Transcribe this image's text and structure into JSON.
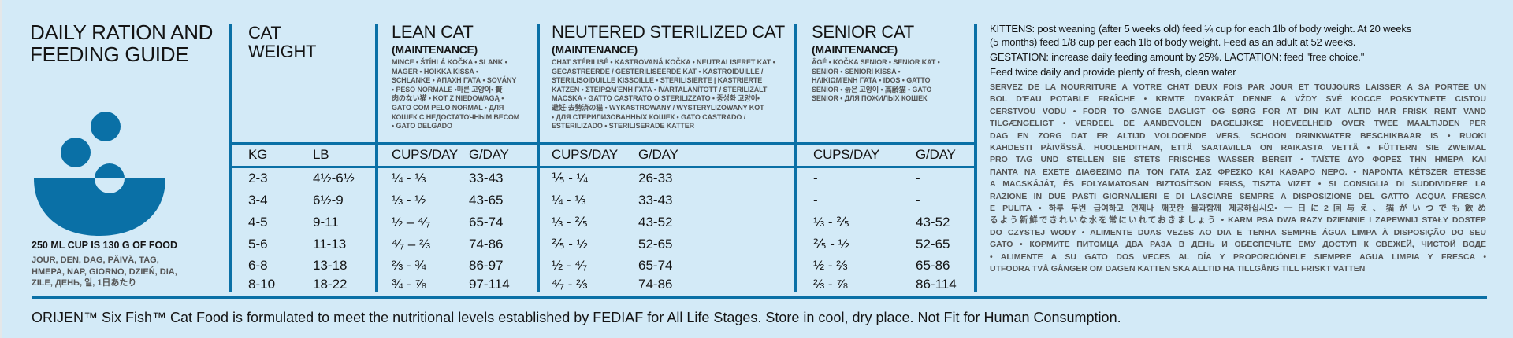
{
  "colors": {
    "accent": "#0a70a6",
    "background": "#d3eaf7"
  },
  "left": {
    "title_lines": [
      "DAILY RATION AND",
      "FEEDING GUIDE"
    ],
    "icon": "food-bowl-icon",
    "cup_note": "250 ML CUP IS 130 G OF FOOD",
    "per_day_lines": [
      "JOUR, DEN, DAG, PÄIVÄ, TAG,",
      "HMEPA, NAP, GIORNO, DZIEŃ, DIA,",
      "ZILE, ДЕНЬ, 일, 1日あたり"
    ]
  },
  "weight": {
    "title_lines": [
      "CAT",
      "WEIGHT"
    ],
    "kg_label": "KG",
    "lb_label": "LB"
  },
  "lean": {
    "title": "LEAN CAT",
    "subtitle": "(MAINTENANCE)",
    "translations": [
      "MINCE • ŠTÍHLÁ KOČKA • SLANK •",
      "MAGER • HOIKKA KISSA •",
      "SCHLANKE • ΆΠΑΧΗ ΓΆΤΑ • SOVÁNY",
      "• PESO NORMALE •마른 고양이• 贅",
      "肉のない猫 • KOT Z NIEDOWAGĄ •",
      "GATO COM PELO NORMAL • ДЛЯ",
      "КОШЕК С НЕДОСТАТОЧНЫМ ВЕСОМ",
      "• GATO DELGADO"
    ],
    "cups_label": "CUPS/DAY",
    "g_label": "G/DAY"
  },
  "neutered": {
    "title": "NEUTERED STERILIZED CAT",
    "subtitle": "(MAINTENANCE)",
    "translations": [
      "CHAT STÉRILISÉ • KASTROVANÁ KOČKA • NEUTRALISERET KAT •",
      "GECASTREERDE / GESTERILISEERDE KAT • KASTROIDUILLE /",
      "STERILISOIDUILLE KISSOILLE • STERILISIERTE | KASTRIERTE",
      "KATZEN • ΣΤΕΙΡΩΜΈΝΗ ΓΆΤΑ • IVARTALANÍTOTT / STERILIZÁLT",
      "MACSKA • GATTO CASTRATO O STERILIZZATO • 중성화 고양이•",
      "避妊·去勢済の猫 • WYKASTROWANY / WYSTERYLIZOWANY KOT",
      "• ДЛЯ СТЕРИЛИЗОВАННЫХ КОШЕК • GATO CASTRADO /",
      "ESTERILIZADO • STERILISERADE KATTER"
    ],
    "cups_label": "CUPS/DAY",
    "g_label": "G/DAY"
  },
  "senior": {
    "title": "SENIOR CAT",
    "subtitle": "(MAINTENANCE)",
    "translations": [
      "ÂGÉ • KOČKA SENIOR • SENIOR KAT •",
      "SENIOR • SENIORI KISSA •",
      "ΗΛΙΚΙΩΜΈΝΗ ΓΆΤΑ • IDOS • GATTO",
      "SENIOR • 늙은 고양이 • 高齢猫 • GATO",
      "SENIOR • ДЛЯ ПОЖИЛЫХ КОШЕК"
    ],
    "cups_label": "CUPS/DAY",
    "g_label": "G/DAY"
  },
  "rows": [
    {
      "kg": "2-3",
      "lb": "4½-6½",
      "lean_cups": "¼ - ⅓",
      "lean_g": "33-43",
      "neut_cups": "⅕ - ¼",
      "neut_g": "26-33",
      "senior_cups": "-",
      "senior_g": "-"
    },
    {
      "kg": "3-4",
      "lb": "6½-9",
      "lean_cups": "⅓ - ½",
      "lean_g": "43-65",
      "neut_cups": "¼ - ⅓",
      "neut_g": "33-43",
      "senior_cups": "-",
      "senior_g": "-"
    },
    {
      "kg": "4-5",
      "lb": "9-11",
      "lean_cups": "½ – ⁴⁄₇",
      "lean_g": "65-74",
      "neut_cups": "⅓ - ⅖",
      "neut_g": "43-52",
      "senior_cups": "⅓ - ⅖",
      "senior_g": "43-52"
    },
    {
      "kg": "5-6",
      "lb": "11-13",
      "lean_cups": "⁴⁄₇ – ⅔",
      "lean_g": "74-86",
      "neut_cups": "⅖ - ½",
      "neut_g": "52-65",
      "senior_cups": "⅖ - ½",
      "senior_g": "52-65"
    },
    {
      "kg": "6-8",
      "lb": "13-18",
      "lean_cups": "⅔ - ¾",
      "lean_g": "86-97",
      "neut_cups": "½ - ⁴⁄₇",
      "neut_g": "65-74",
      "senior_cups": "½ - ⅔",
      "senior_g": "65-86"
    },
    {
      "kg": "8-10",
      "lb": "18-22",
      "lean_cups": "¾ - ⅞",
      "lean_g": "97-114",
      "neut_cups": "⁴⁄₇ - ⅔",
      "neut_g": "74-86",
      "senior_cups": "⅔ - ⅞",
      "senior_g": "86-114"
    }
  ],
  "notes": {
    "lines": [
      "KITTENS: post weaning (after 5 weeks old) feed ¼ cup for each 1lb of body weight. At 20 weeks",
      "(5 months) feed 1/8 cup per each 1lb of body weight. Feed as an adult at 52 weeks.",
      "GESTATION: increase daily feeding amount by 25%. LACTATION: feed \"free choice.\"",
      "Feed twice daily and provide plenty of fresh, clean water"
    ],
    "translation_lines": [
      "SERVEZ DE LA NOURRITURE À VOTRE CHAT DEUX FOIS PAR JOUR ET TOUJOURS LAISSER À SA PORTÉE UN",
      "BOL D'EAU POTABLE FRAÎCHE • KRMTE DVAKRÁT DENNE A VŽDY SVÉ KOCCE POSKYTNETE CISTOU",
      "CERSTVOU VODU • FODR TO GANGE DAGLIGT OG SØRG FOR AT DIN KAT ALTID HAR FRISK RENT VAND",
      "TILGÆNGELIGT • VERDEEL DE AANBEVOLEN DAGELIJKSE HOEVEELHEID OVER TWEE MAALTIJDEN PER",
      "DAG EN ZORG DAT ER ALTIJD VOLDOENDE VERS, SCHOON DRINKWATER BESCHIKBAAR IS • RUOKI",
      "KAHDESTI PÄIVÄSSÄ. HUOLEHDITHAN, ETTÄ SAATAVILLA ON RAIKASTA VETTÄ • FÜTTERN SIE ZWEIMAL",
      "PRO TAG UND STELLEN SIE STETS FRISCHES WASSER BEREIT • ΤΑΪΣΤΕ ΔΥΟ ΦΟΡΕΣ ΤΗΝ ΗΜΕΡΑ ΚΑΙ",
      "ΠΑΝΤΑ ΝΑ ΕΧΕΤΕ ΔΙΑΘΕΣΙΜΟ ΠΑ ΤΟΝ ΓΑΤΑ ΣΑΣ ΦΡΕΣΚΟ ΚΑΙ ΚΑΘΑΡΟ ΝΕΡΟ. • NAPONTA KÉTSZER ETESSE",
      "A MACSKÁJÁT, ÉS FOLYAMATOSAN BIZTOSÍTSON FRISS, TISZTA VIZET • SI CONSIGLIA DI SUDDIVIDERE LA",
      "RAZIONE IN DUE PASTI GIORNALIERI E DI LASCIARE SEMPRE A DISPOSIZIONE DEL GATTO ACQUA FRESCA",
      "E PULITA • 하루 두번 급여하고 언제나 깨끗한 물과함께 제공하십시오• 一日に2回与え、猫がいつでも飲め",
      "るよう新鮮できれいな水を常にいれておきましょう • KARM PSA DWA RAZY DZIENNIE I ZAPEWNIJ STAŁY DOSTEP",
      "DO CZYSTEJ WODY • ALIMENTE DUAS VEZES AO DIA E TENHA SEMPRE ÁGUA LIMPA À DISPOSIÇÃO DO SEU",
      "GATO • КОРМИТЕ ПИТОМЦА ДВА РАЗА В ДЕНЬ И ОБЕСПЕЧЬТЕ ЕМУ ДОСТУП К СВЕЖЕЙ, ЧИСТОЙ ВОДЕ",
      "• ALIMENTE A SU GATO DOS VECES AL DÍA Y PROPORCIÓNELE SIEMPRE AGUA LIMPIA Y FRESCA •",
      "UTFODRA TVÅ GÅNGER OM DAGEN KATTEN SKA ALLTID HA TILLGÅNG TILL FRISKT VATTEN"
    ]
  },
  "footer": "ORIJEN™ Six Fish™ Cat Food is formulated to meet the nutritional levels established by FEDIAF for All Life Stages. Store in cool, dry place. Not Fit for Human Consumption."
}
